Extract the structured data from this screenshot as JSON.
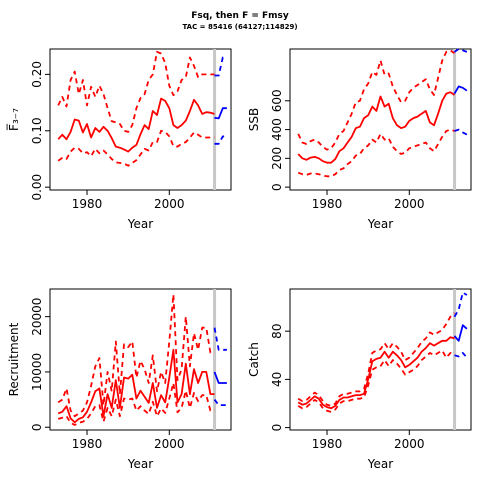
{
  "header": {
    "title": "Fsq, then F = Fmsy",
    "subtitle": "TAC = 85416 (64127;114829)"
  },
  "colors": {
    "history": "#ff0000",
    "forecast": "#0000ff",
    "divider": "#c8c8c8"
  },
  "chart_data": [
    {
      "type": "line",
      "panel": "fbar",
      "xlabel": "Year",
      "ylabel": "F̅₃₋₇",
      "xlim": [
        1971,
        2015
      ],
      "ylim": [
        -0.005,
        0.245
      ],
      "xticks": [
        1980,
        2000
      ],
      "yticks": [
        0.0,
        0.1,
        0.2
      ],
      "ytick_labels": [
        "0.00",
        "0.10",
        "0.20"
      ],
      "vline": 2011,
      "history_x": [
        1973,
        1974,
        1975,
        1976,
        1977,
        1978,
        1979,
        1980,
        1981,
        1982,
        1983,
        1984,
        1985,
        1986,
        1987,
        1988,
        1989,
        1990,
        1991,
        1992,
        1993,
        1994,
        1995,
        1996,
        1997,
        1998,
        1999,
        2000,
        2001,
        2002,
        2003,
        2004,
        2005,
        2006,
        2007,
        2008,
        2009,
        2010,
        2011
      ],
      "history": [
        {
          "name": "median",
          "style": "solid",
          "values": [
            0.085,
            0.093,
            0.085,
            0.098,
            0.12,
            0.118,
            0.097,
            0.112,
            0.088,
            0.105,
            0.098,
            0.107,
            0.1,
            0.087,
            0.072,
            0.07,
            0.067,
            0.063,
            0.07,
            0.075,
            0.094,
            0.11,
            0.103,
            0.135,
            0.128,
            0.157,
            0.153,
            0.14,
            0.11,
            0.105,
            0.11,
            0.118,
            0.135,
            0.155,
            0.145,
            0.13,
            0.133,
            0.132,
            0.13
          ]
        },
        {
          "name": "upper",
          "style": "dashed",
          "values": [
            0.145,
            0.16,
            0.143,
            0.19,
            0.205,
            0.165,
            0.19,
            0.145,
            0.178,
            0.16,
            0.18,
            0.165,
            0.14,
            0.117,
            0.115,
            0.112,
            0.1,
            0.098,
            0.11,
            0.14,
            0.158,
            0.165,
            0.19,
            0.2,
            0.24,
            0.237,
            0.22,
            0.18,
            0.163,
            0.17,
            0.19,
            0.195,
            0.23,
            0.215,
            0.195,
            0.2,
            0.2,
            0.2,
            0.2
          ]
        },
        {
          "name": "lower",
          "style": "dashed",
          "values": [
            0.047,
            0.052,
            0.05,
            0.063,
            0.07,
            0.068,
            0.06,
            0.062,
            0.055,
            0.068,
            0.06,
            0.065,
            0.058,
            0.05,
            0.044,
            0.043,
            0.042,
            0.038,
            0.043,
            0.048,
            0.058,
            0.068,
            0.065,
            0.08,
            0.08,
            0.1,
            0.098,
            0.09,
            0.073,
            0.072,
            0.077,
            0.08,
            0.088,
            0.097,
            0.093,
            0.088,
            0.088,
            0.088,
            0.088
          ]
        }
      ],
      "forecast_x": [
        2011,
        2012,
        2013,
        2014
      ],
      "forecast": [
        {
          "name": "median",
          "style": "solid",
          "values": [
            0.123,
            0.122,
            0.14,
            0.14
          ]
        },
        {
          "name": "upper",
          "style": "dashed",
          "values": [
            0.198,
            0.198,
            0.23,
            0.23
          ]
        },
        {
          "name": "lower",
          "style": "dashed",
          "values": [
            0.077,
            0.077,
            0.09,
            0.09
          ]
        }
      ]
    },
    {
      "type": "line",
      "panel": "ssb",
      "xlabel": "Year",
      "ylabel": "SSB",
      "xlim": [
        1971,
        2015
      ],
      "ylim": [
        -20,
        960
      ],
      "xticks": [
        1980,
        2000
      ],
      "yticks": [
        0,
        200,
        400,
        600
      ],
      "ytick_labels": [
        "0",
        "200",
        "400",
        "600"
      ],
      "vline": 2011,
      "history_x": [
        1973,
        1974,
        1975,
        1976,
        1977,
        1978,
        1979,
        1980,
        1981,
        1982,
        1983,
        1984,
        1985,
        1986,
        1987,
        1988,
        1989,
        1990,
        1991,
        1992,
        1993,
        1994,
        1995,
        1996,
        1997,
        1998,
        1999,
        2000,
        2001,
        2002,
        2003,
        2004,
        2005,
        2006,
        2007,
        2008,
        2009,
        2010,
        2011
      ],
      "history": [
        {
          "name": "median",
          "style": "solid",
          "values": [
            230,
            200,
            190,
            205,
            210,
            200,
            180,
            170,
            170,
            195,
            250,
            270,
            310,
            350,
            410,
            420,
            480,
            500,
            560,
            530,
            630,
            560,
            580,
            480,
            430,
            410,
            420,
            460,
            480,
            490,
            510,
            530,
            450,
            430,
            510,
            600,
            650,
            660,
            640
          ]
        },
        {
          "name": "upper",
          "style": "dashed",
          "values": [
            370,
            310,
            300,
            320,
            330,
            310,
            280,
            260,
            270,
            310,
            370,
            390,
            450,
            510,
            590,
            600,
            680,
            720,
            800,
            780,
            880,
            780,
            790,
            700,
            640,
            590,
            600,
            660,
            690,
            710,
            730,
            750,
            680,
            640,
            760,
            880,
            940,
            950,
            930
          ]
        },
        {
          "name": "lower",
          "style": "dashed",
          "values": [
            100,
            90,
            85,
            95,
            95,
            90,
            80,
            75,
            75,
            90,
            120,
            130,
            160,
            180,
            220,
            230,
            270,
            290,
            330,
            310,
            370,
            330,
            340,
            280,
            250,
            230,
            240,
            270,
            280,
            290,
            300,
            310,
            270,
            250,
            300,
            350,
            390,
            400,
            390
          ]
        }
      ],
      "forecast_x": [
        2011,
        2012,
        2013,
        2014
      ],
      "forecast": [
        {
          "name": "median",
          "style": "solid",
          "values": [
            650,
            700,
            690,
            670
          ]
        },
        {
          "name": "upper",
          "style": "dashed",
          "values": [
            940,
            960,
            950,
            940
          ]
        },
        {
          "name": "lower",
          "style": "dashed",
          "values": [
            390,
            400,
            380,
            365
          ]
        }
      ]
    },
    {
      "type": "line",
      "panel": "recruitment",
      "xlabel": "Year",
      "ylabel": "Recruitment",
      "xlim": [
        1971,
        2015
      ],
      "ylim": [
        -500,
        25000
      ],
      "xticks": [
        1980,
        2000
      ],
      "yticks": [
        0,
        10000,
        20000
      ],
      "ytick_labels": [
        "0",
        "10000",
        "20000"
      ],
      "vline": 2011,
      "history_x": [
        1973,
        1974,
        1975,
        1976,
        1977,
        1978,
        1979,
        1980,
        1981,
        1982,
        1983,
        1984,
        1985,
        1986,
        1987,
        1988,
        1989,
        1990,
        1991,
        1992,
        1993,
        1994,
        1995,
        1996,
        1997,
        1998,
        1999,
        2000,
        2001,
        2002,
        2003,
        2004,
        2005,
        2006,
        2007,
        2008,
        2009,
        2010,
        2011
      ],
      "history": [
        {
          "name": "median",
          "style": "solid",
          "values": [
            2500,
            2800,
            3800,
            1600,
            900,
            1500,
            1800,
            2800,
            4500,
            6500,
            7000,
            2000,
            6000,
            3500,
            8500,
            3500,
            9000,
            8800,
            9500,
            5200,
            6600,
            5500,
            4400,
            8000,
            3500,
            5800,
            4500,
            9000,
            14000,
            4500,
            6000,
            11500,
            6000,
            10500,
            8000,
            10000,
            10000,
            6000,
            6000
          ]
        },
        {
          "name": "upper",
          "style": "dashed",
          "values": [
            4500,
            5000,
            7000,
            3000,
            2000,
            2500,
            3000,
            4500,
            7500,
            11000,
            12500,
            4000,
            10000,
            6500,
            15500,
            6000,
            15000,
            14500,
            15500,
            9000,
            12000,
            10500,
            8000,
            13000,
            6500,
            10000,
            8000,
            15500,
            24000,
            8500,
            10500,
            20000,
            11000,
            17000,
            14000,
            18000,
            18000,
            13500,
            13500
          ]
        },
        {
          "name": "lower",
          "style": "dashed",
          "values": [
            1500,
            1700,
            2000,
            800,
            400,
            800,
            1000,
            1500,
            2500,
            3800,
            4000,
            1000,
            3500,
            2000,
            5000,
            2000,
            5200,
            5000,
            5200,
            3000,
            3800,
            3000,
            2400,
            4600,
            2000,
            3400,
            2600,
            5200,
            8000,
            2700,
            3500,
            6600,
            3500,
            6200,
            4700,
            5800,
            5800,
            3000,
            3000
          ]
        }
      ],
      "forecast_x": [
        2011,
        2012,
        2013,
        2014
      ],
      "forecast": [
        {
          "name": "median",
          "style": "solid",
          "values": [
            10000,
            8000,
            8000,
            8000
          ]
        },
        {
          "name": "upper",
          "style": "dashed",
          "values": [
            18000,
            14000,
            14000,
            14000
          ]
        },
        {
          "name": "lower",
          "style": "dashed",
          "values": [
            5000,
            4000,
            4000,
            4000
          ]
        }
      ]
    },
    {
      "type": "line",
      "panel": "catch",
      "xlabel": "Year",
      "ylabel": "Catch",
      "xlim": [
        1971,
        2015
      ],
      "ylim": [
        -2,
        115
      ],
      "xticks": [
        1980,
        2000
      ],
      "yticks": [
        0,
        40,
        80
      ],
      "ytick_labels": [
        "0",
        "40",
        "80"
      ],
      "vline": 2011,
      "history_x": [
        1973,
        1974,
        1975,
        1976,
        1977,
        1978,
        1979,
        1980,
        1981,
        1982,
        1983,
        1984,
        1985,
        1986,
        1987,
        1988,
        1989,
        1990,
        1991,
        1992,
        1993,
        1994,
        1995,
        1996,
        1997,
        1998,
        1999,
        2000,
        2001,
        2002,
        2003,
        2004,
        2005,
        2006,
        2007,
        2008,
        2009,
        2010,
        2011
      ],
      "history": [
        {
          "name": "median",
          "style": "solid",
          "values": [
            21,
            19,
            20,
            23,
            26,
            24,
            19,
            17,
            16,
            18,
            23,
            25,
            25,
            26,
            27,
            27,
            28,
            40,
            55,
            57,
            58,
            63,
            58,
            63,
            60,
            56,
            50,
            52,
            55,
            58,
            63,
            66,
            70,
            68,
            70,
            72,
            72,
            75,
            74
          ]
        },
        {
          "name": "upper",
          "style": "dashed",
          "values": [
            24,
            22,
            23,
            26,
            29,
            27,
            22,
            19,
            18,
            20,
            26,
            28,
            28,
            29,
            30,
            30,
            32,
            45,
            62,
            64,
            65,
            70,
            65,
            70,
            67,
            63,
            56,
            58,
            62,
            66,
            71,
            74,
            79,
            77,
            79,
            81,
            86,
            92,
            95
          ]
        },
        {
          "name": "lower",
          "style": "dashed",
          "values": [
            18,
            16,
            17,
            20,
            23,
            21,
            16,
            14,
            13,
            15,
            20,
            22,
            22,
            23,
            24,
            24,
            25,
            35,
            48,
            50,
            51,
            56,
            51,
            56,
            53,
            49,
            44,
            46,
            48,
            51,
            56,
            59,
            62,
            60,
            62,
            64,
            58,
            62,
            60
          ]
        }
      ],
      "forecast_x": [
        2011,
        2012,
        2013,
        2014
      ],
      "forecast": [
        {
          "name": "median",
          "style": "solid",
          "values": [
            76,
            72,
            85,
            82
          ]
        },
        {
          "name": "upper",
          "style": "dashed",
          "values": [
            92,
            98,
            112,
            110
          ]
        },
        {
          "name": "lower",
          "style": "dashed",
          "values": [
            60,
            59,
            62,
            58
          ]
        }
      ]
    }
  ]
}
